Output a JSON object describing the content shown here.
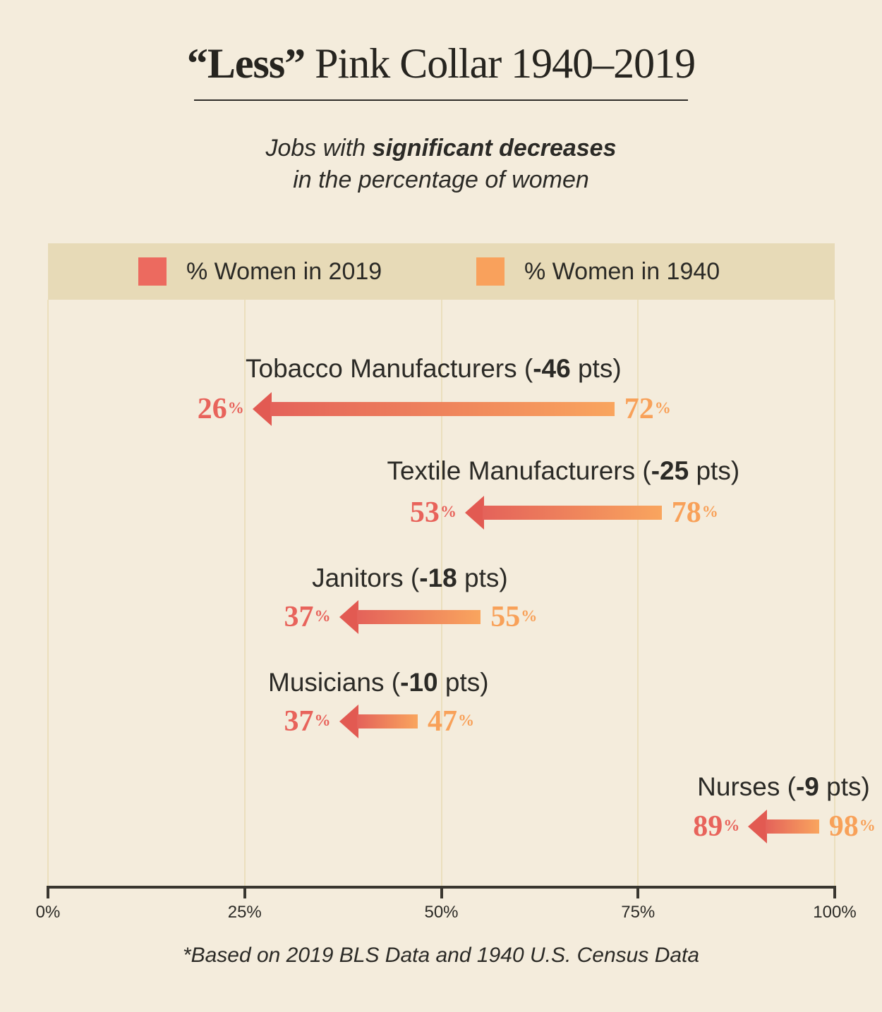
{
  "title": {
    "emphasis": "“Less”",
    "rest": " Pink Collar 1940–2019"
  },
  "subtitle": {
    "line1_prefix": "Jobs with ",
    "line1_bold": "significant decreases",
    "line2": "in the percentage of women"
  },
  "legend": {
    "items": [
      {
        "label": "% Women in 2019",
        "color": "#EC6A5F"
      },
      {
        "label": "% Women in 1940",
        "color": "#F9A15C"
      }
    ]
  },
  "chart_data": {
    "type": "bar",
    "subtype": "dumbbell-arrow",
    "title": "“Less” Pink Collar 1940–2019",
    "subtitle": "Jobs with significant decreases in the percentage of women",
    "xlabel": "",
    "ylabel": "",
    "unit": "%",
    "xlim": [
      0,
      100
    ],
    "grid": true,
    "legend_position": "top",
    "ticks": [
      0,
      25,
      50,
      75,
      100
    ],
    "tick_labels": [
      "0%",
      "25%",
      "50%",
      "75%",
      "100%"
    ],
    "categories": [
      "Tobacco Manufacturers",
      "Textile Manufacturers",
      "Janitors",
      "Musicians",
      "Nurses"
    ],
    "series": [
      {
        "name": "% Women in 2019",
        "color": "#EC6A5F",
        "values": [
          26,
          53,
          37,
          37,
          89
        ]
      },
      {
        "name": "% Women in 1940",
        "color": "#F9A15C",
        "values": [
          72,
          78,
          55,
          47,
          98
        ]
      }
    ],
    "deltas_pts": [
      -46,
      -25,
      -18,
      -10,
      -9
    ],
    "value_2019_color": "#E8635B",
    "value_1940_color": "#F8A159",
    "arrow": {
      "head_color": "#E25A52",
      "gradient_left": "#E4625A",
      "gradient_right": "#F9A55E"
    },
    "rows": [
      {
        "label_prefix": "Tobacco Manufacturers (",
        "pts": "-46",
        "label_suffix": " pts)",
        "to_2019": 26,
        "from_1940": 72
      },
      {
        "label_prefix": "Textile Manufacturers (",
        "pts": "-25",
        "label_suffix": " pts)",
        "to_2019": 53,
        "from_1940": 78
      },
      {
        "label_prefix": "Janitors (",
        "pts": "-18",
        "label_suffix": " pts)",
        "to_2019": 37,
        "from_1940": 55
      },
      {
        "label_prefix": "Musicians (",
        "pts": "-10",
        "label_suffix": " pts)",
        "to_2019": 37,
        "from_1940": 47
      },
      {
        "label_prefix": "Nurses (",
        "pts": "-9",
        "label_suffix": " pts)",
        "to_2019": 89,
        "from_1940": 98
      }
    ]
  },
  "footnote": "*Based on 2019 BLS Data and 1940 U.S. Census Data"
}
